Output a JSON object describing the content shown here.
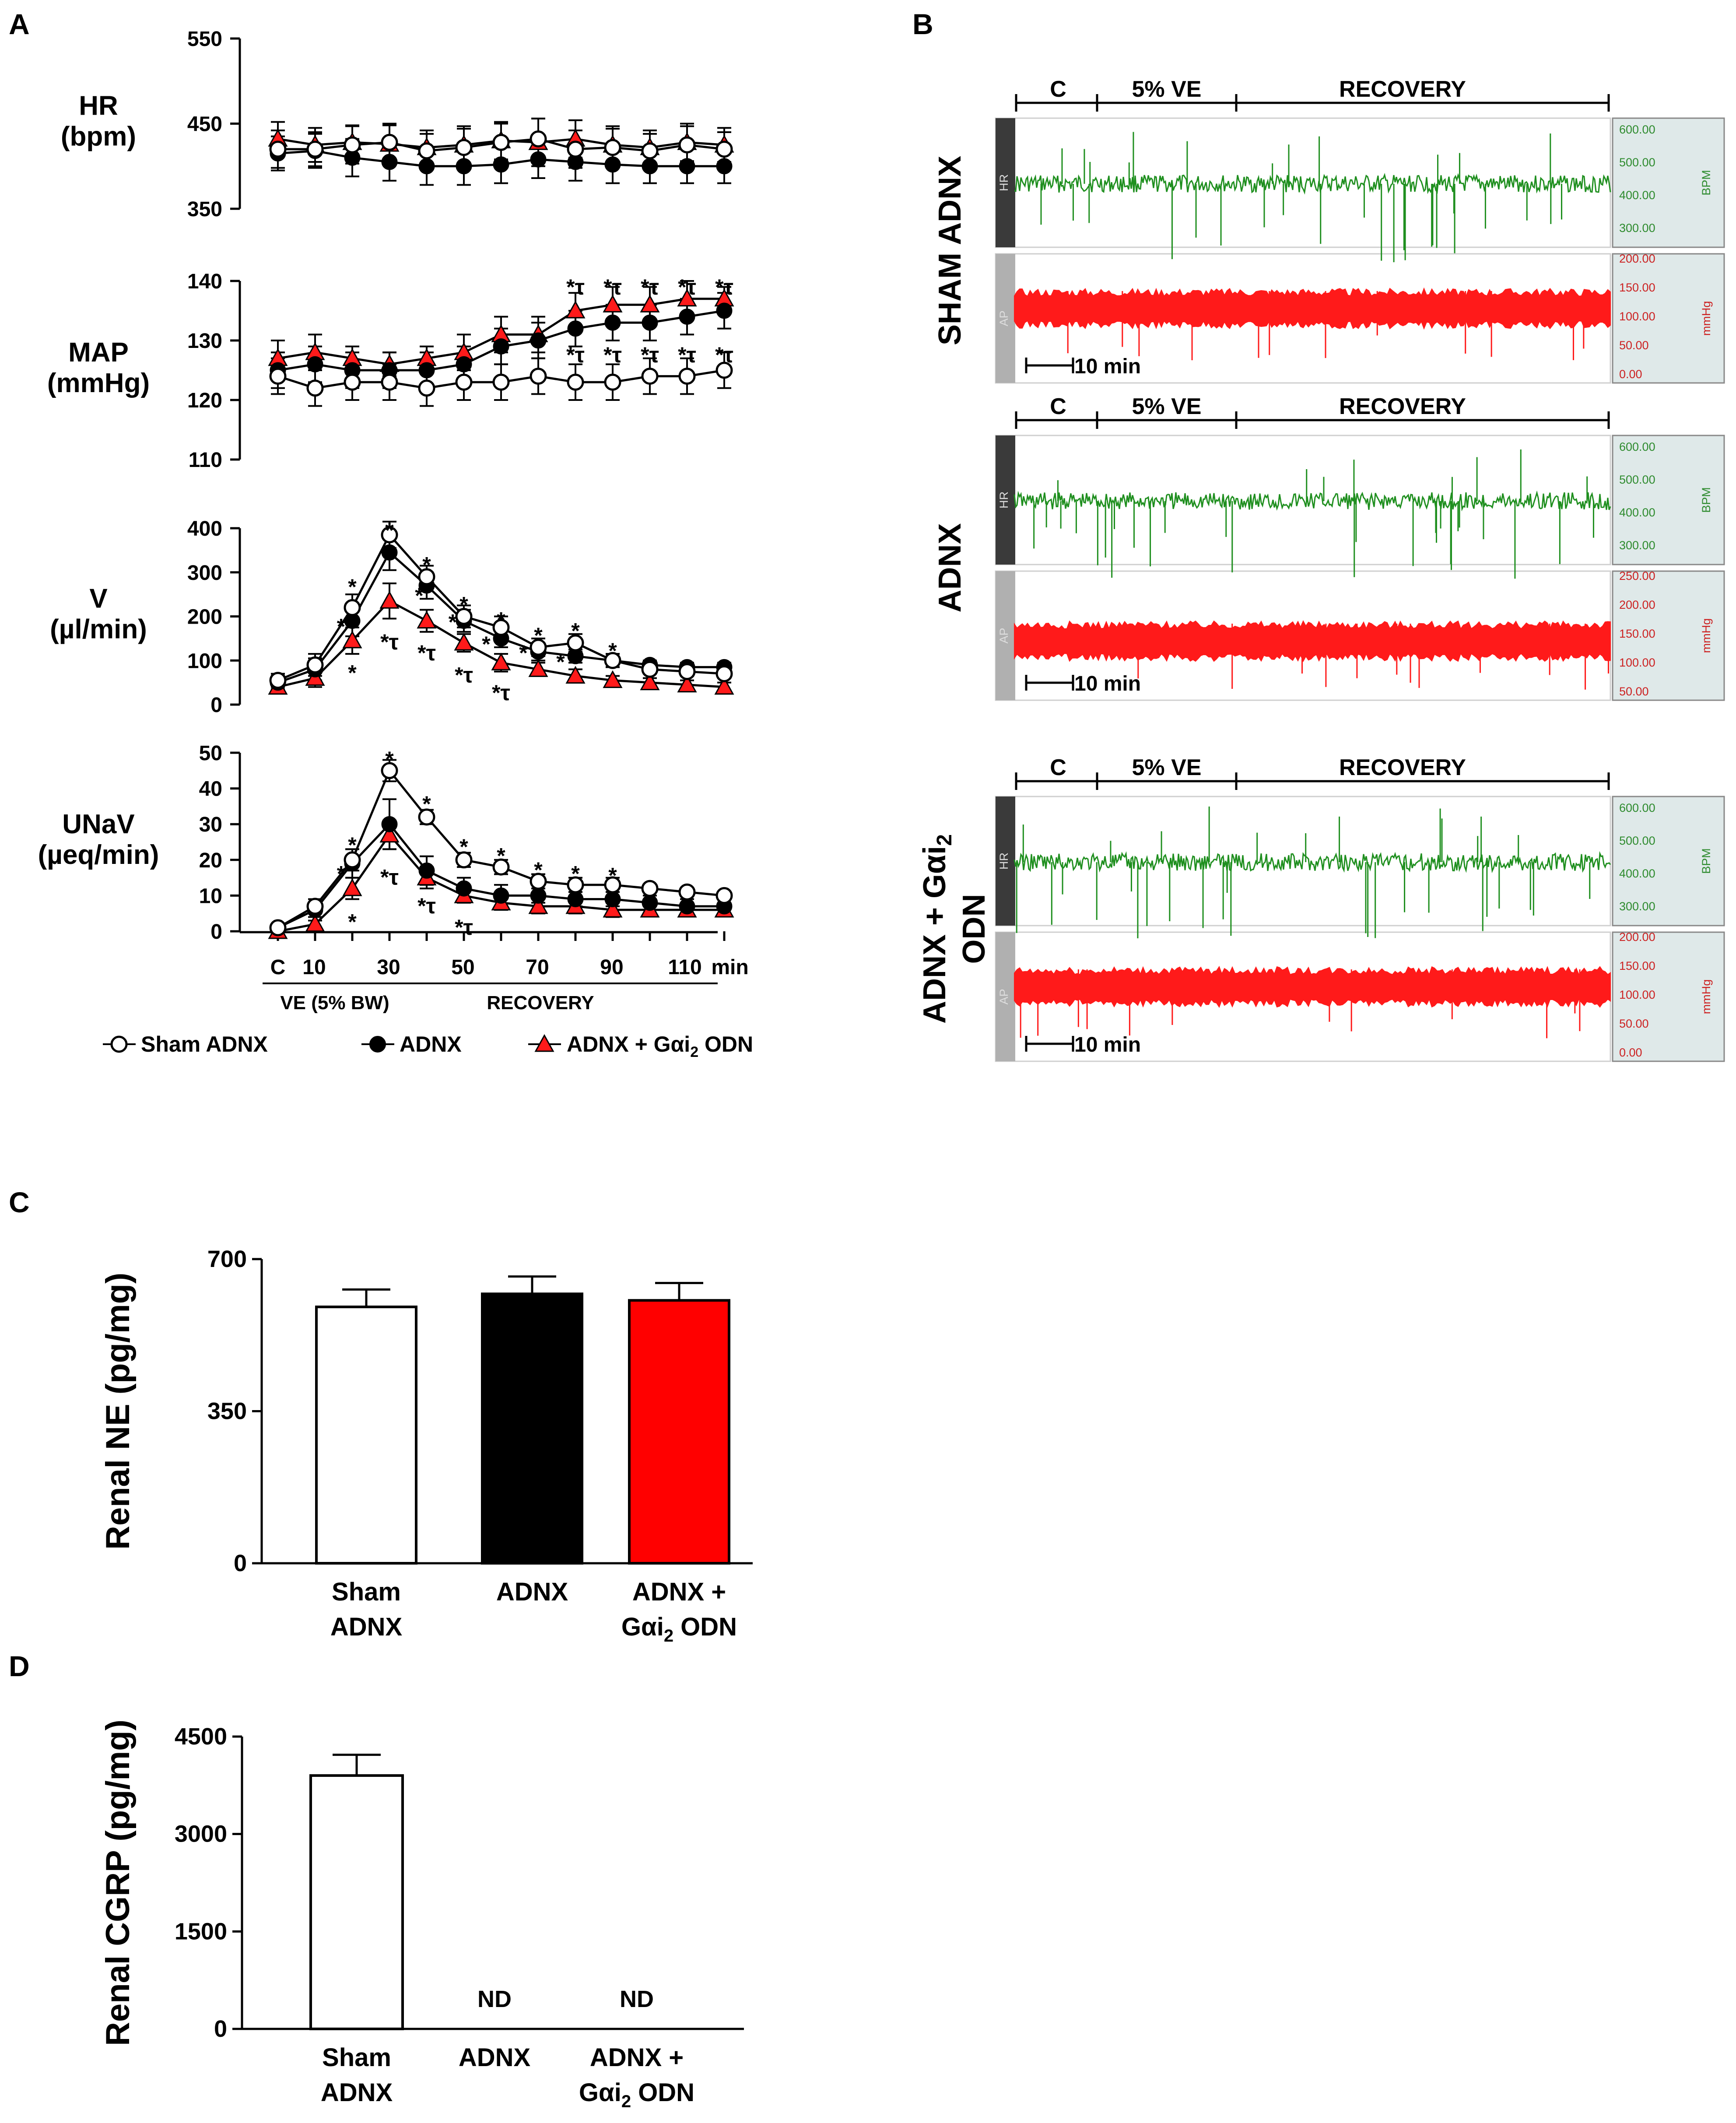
{
  "panels": {
    "a": "A",
    "b": "B",
    "c": "C",
    "d": "D"
  },
  "legend": {
    "sham": "Sham ADNX",
    "adnx": "ADNX",
    "odn": "ADNX + Gαi",
    "odn_sub": "2",
    "odn_suffix": " ODN"
  },
  "panelA_xaxis": {
    "ticks": [
      "C",
      "10",
      "30",
      "50",
      "70",
      "90",
      "110"
    ],
    "unit": "min",
    "ve_label": "VE (5% BW)",
    "recovery_label": "RECOVERY"
  },
  "chart_data": [
    {
      "id": "hr",
      "type": "line",
      "title": "",
      "ylabel": "HR",
      "yunit": "(bpm)",
      "ylim": [
        350,
        550
      ],
      "yticks": [
        "550",
        "450",
        "350"
      ],
      "x": [
        "C",
        "10",
        "20",
        "30",
        "40",
        "50",
        "60",
        "70",
        "80",
        "90",
        "100",
        "110",
        "120"
      ],
      "series": [
        {
          "name": "Sham ADNX",
          "marker": "open-circle",
          "values": [
            420,
            420,
            425,
            428,
            418,
            422,
            428,
            432,
            420,
            422,
            418,
            425,
            420
          ],
          "err": [
            22,
            20,
            22,
            22,
            20,
            22,
            22,
            24,
            22,
            22,
            20,
            22,
            20
          ]
        },
        {
          "name": "ADNX",
          "marker": "filled-circle",
          "values": [
            415,
            418,
            410,
            405,
            400,
            400,
            402,
            408,
            405,
            402,
            400,
            400,
            400
          ],
          "err": [
            20,
            20,
            22,
            22,
            22,
            22,
            22,
            22,
            22,
            22,
            20,
            20,
            20
          ]
        },
        {
          "name": "ADNX + Gαi2 ODN",
          "marker": "filled-triangle",
          "values": [
            432,
            425,
            428,
            426,
            422,
            425,
            430,
            428,
            432,
            425,
            422,
            428,
            425
          ],
          "err": [
            20,
            20,
            20,
            22,
            20,
            22,
            22,
            28,
            22,
            22,
            20,
            22,
            20
          ]
        }
      ]
    },
    {
      "id": "map",
      "type": "line",
      "title": "",
      "ylabel": "MAP",
      "yunit": "(mmHg)",
      "ylim": [
        110,
        140
      ],
      "yticks": [
        "140",
        "130",
        "120",
        "110"
      ],
      "x": [
        "C",
        "10",
        "20",
        "30",
        "40",
        "50",
        "60",
        "70",
        "80",
        "90",
        "100",
        "110",
        "120"
      ],
      "series": [
        {
          "name": "Sham ADNX",
          "marker": "open-circle",
          "values": [
            124,
            122,
            123,
            123,
            122,
            123,
            123,
            124,
            123,
            123,
            124,
            124,
            125
          ],
          "err": [
            3,
            3,
            3,
            3,
            3,
            3,
            3,
            3,
            3,
            3,
            3,
            3,
            3
          ]
        },
        {
          "name": "ADNX",
          "marker": "filled-circle",
          "values": [
            125,
            126,
            125,
            125,
            125,
            126,
            129,
            130,
            132,
            133,
            133,
            134,
            135
          ],
          "err": [
            3,
            3,
            3,
            3,
            3,
            3,
            3,
            3,
            3,
            3,
            3,
            3,
            3
          ]
        },
        {
          "name": "ADNX + Gαi2 ODN",
          "marker": "filled-triangle",
          "values": [
            127,
            128,
            127,
            126,
            127,
            128,
            131,
            131,
            135,
            136,
            136,
            137,
            137
          ],
          "err": [
            3,
            3,
            2,
            2,
            2,
            3,
            3,
            3,
            3,
            3,
            3,
            3,
            2
          ]
        }
      ]
    },
    {
      "id": "v",
      "type": "line",
      "title": "",
      "ylabel": "V",
      "yunit": "(µl/min)",
      "ylim": [
        0,
        400
      ],
      "yticks": [
        "400",
        "300",
        "200",
        "100",
        "0"
      ],
      "x": [
        "C",
        "10",
        "20",
        "30",
        "40",
        "50",
        "60",
        "70",
        "80",
        "90",
        "100",
        "110",
        "120"
      ],
      "series": [
        {
          "name": "Sham ADNX",
          "marker": "open-circle",
          "values": [
            55,
            90,
            220,
            385,
            290,
            200,
            175,
            130,
            140,
            100,
            80,
            75,
            70
          ],
          "err": [
            15,
            25,
            30,
            30,
            25,
            25,
            25,
            20,
            20,
            15,
            10,
            10,
            10
          ]
        },
        {
          "name": "ADNX",
          "marker": "filled-circle",
          "values": [
            50,
            80,
            190,
            345,
            270,
            190,
            150,
            120,
            110,
            100,
            90,
            85,
            85
          ],
          "err": [
            15,
            25,
            35,
            40,
            30,
            25,
            20,
            20,
            15,
            15,
            10,
            10,
            10
          ]
        },
        {
          "name": "ADNX + Gαi2 ODN",
          "marker": "filled-triangle",
          "values": [
            40,
            60,
            145,
            235,
            190,
            140,
            95,
            80,
            65,
            55,
            50,
            45,
            40
          ],
          "err": [
            15,
            20,
            30,
            40,
            25,
            20,
            20,
            15,
            15,
            10,
            10,
            10,
            10
          ]
        }
      ]
    },
    {
      "id": "unav",
      "type": "line",
      "title": "",
      "ylabel": "UNaV",
      "yunit": "(µeq/min)",
      "ylim": [
        0,
        50
      ],
      "yticks": [
        "50",
        "40",
        "30",
        "20",
        "10",
        "0"
      ],
      "x": [
        "C",
        "10",
        "20",
        "30",
        "40",
        "50",
        "60",
        "70",
        "80",
        "90",
        "100",
        "110",
        "120"
      ],
      "series": [
        {
          "name": "Sham ADNX",
          "marker": "open-circle",
          "values": [
            1,
            7,
            20,
            45,
            32,
            20,
            18,
            14,
            13,
            13,
            12,
            11,
            10
          ],
          "err": [
            1,
            2,
            3,
            3,
            2,
            2,
            2,
            2,
            2,
            2,
            1,
            1,
            1
          ]
        },
        {
          "name": "ADNX",
          "marker": "filled-circle",
          "values": [
            1,
            6,
            19,
            30,
            17,
            12,
            10,
            10,
            9,
            9,
            8,
            7,
            7
          ],
          "err": [
            1,
            2,
            4,
            7,
            4,
            3,
            3,
            2,
            2,
            2,
            2,
            2,
            2
          ]
        },
        {
          "name": "ADNX + Gαi2 ODN",
          "marker": "filled-triangle",
          "values": [
            0,
            2,
            12,
            27,
            15,
            10,
            8,
            7,
            7,
            6,
            6,
            6,
            6
          ],
          "err": [
            1,
            1,
            3,
            4,
            3,
            2,
            2,
            2,
            2,
            2,
            1,
            1,
            1
          ]
        }
      ]
    },
    {
      "id": "ne",
      "type": "bar",
      "title": "",
      "ylabel": "Renal NE (pg/mg)",
      "ylim": [
        0,
        700
      ],
      "yticks": [
        "700",
        "350",
        "0"
      ],
      "categories": [
        {
          "line1": "Sham",
          "line2": "ADNX"
        },
        {
          "line1": "ADNX",
          "line2": ""
        },
        {
          "line1": "ADNX +",
          "line2": "Gαi",
          "sub": "2",
          "suffix": " ODN"
        }
      ],
      "values": [
        590,
        620,
        605
      ],
      "err": [
        40,
        40,
        40
      ],
      "colors": [
        "#ffffff",
        "#000000",
        "#ff0000"
      ]
    },
    {
      "id": "cgrp",
      "type": "bar",
      "title": "",
      "ylabel": "Renal CGRP (pg/mg)",
      "ylim": [
        0,
        4500
      ],
      "yticks": [
        "4500",
        "3000",
        "1500",
        "0"
      ],
      "categories": [
        {
          "line1": "Sham",
          "line2": "ADNX"
        },
        {
          "line1": "ADNX",
          "line2": ""
        },
        {
          "line1": "ADNX +",
          "line2": "Gαi",
          "sub": "2",
          "suffix": " ODN"
        }
      ],
      "values": [
        3900,
        null,
        null
      ],
      "err": [
        320,
        null,
        null
      ],
      "nd_label": "ND",
      "colors": [
        "#ffffff",
        "#000000",
        "#ff0000"
      ]
    }
  ],
  "traces": {
    "segments": {
      "c": "C",
      "ve": "5% VE",
      "recovery": "RECOVERY"
    },
    "scale_bar": "10 min",
    "hr_channel": "HR",
    "ap_channel": "AP",
    "bpm_unit": "BPM",
    "mmhg_unit": "mmHg",
    "groups": [
      {
        "label": "SHAM ADNX",
        "hr_ticks": [
          "600.00",
          "500.00",
          "400.00",
          "300.00"
        ],
        "ap_ticks": [
          "200.00",
          "150.00",
          "100.00",
          "50.00",
          "0.00"
        ]
      },
      {
        "label": "ADNX",
        "hr_ticks": [
          "600.00",
          "500.00",
          "400.00",
          "300.00"
        ],
        "ap_ticks": [
          "250.00",
          "200.00",
          "150.00",
          "100.00",
          "50.00"
        ]
      },
      {
        "label": "ADNX + Gαi",
        "label_sub": "2",
        "label_line2": "ODN",
        "hr_ticks": [
          "600.00",
          "500.00",
          "400.00",
          "300.00"
        ],
        "ap_ticks": [
          "200.00",
          "150.00",
          "100.00",
          "50.00",
          "0.00"
        ]
      }
    ]
  }
}
